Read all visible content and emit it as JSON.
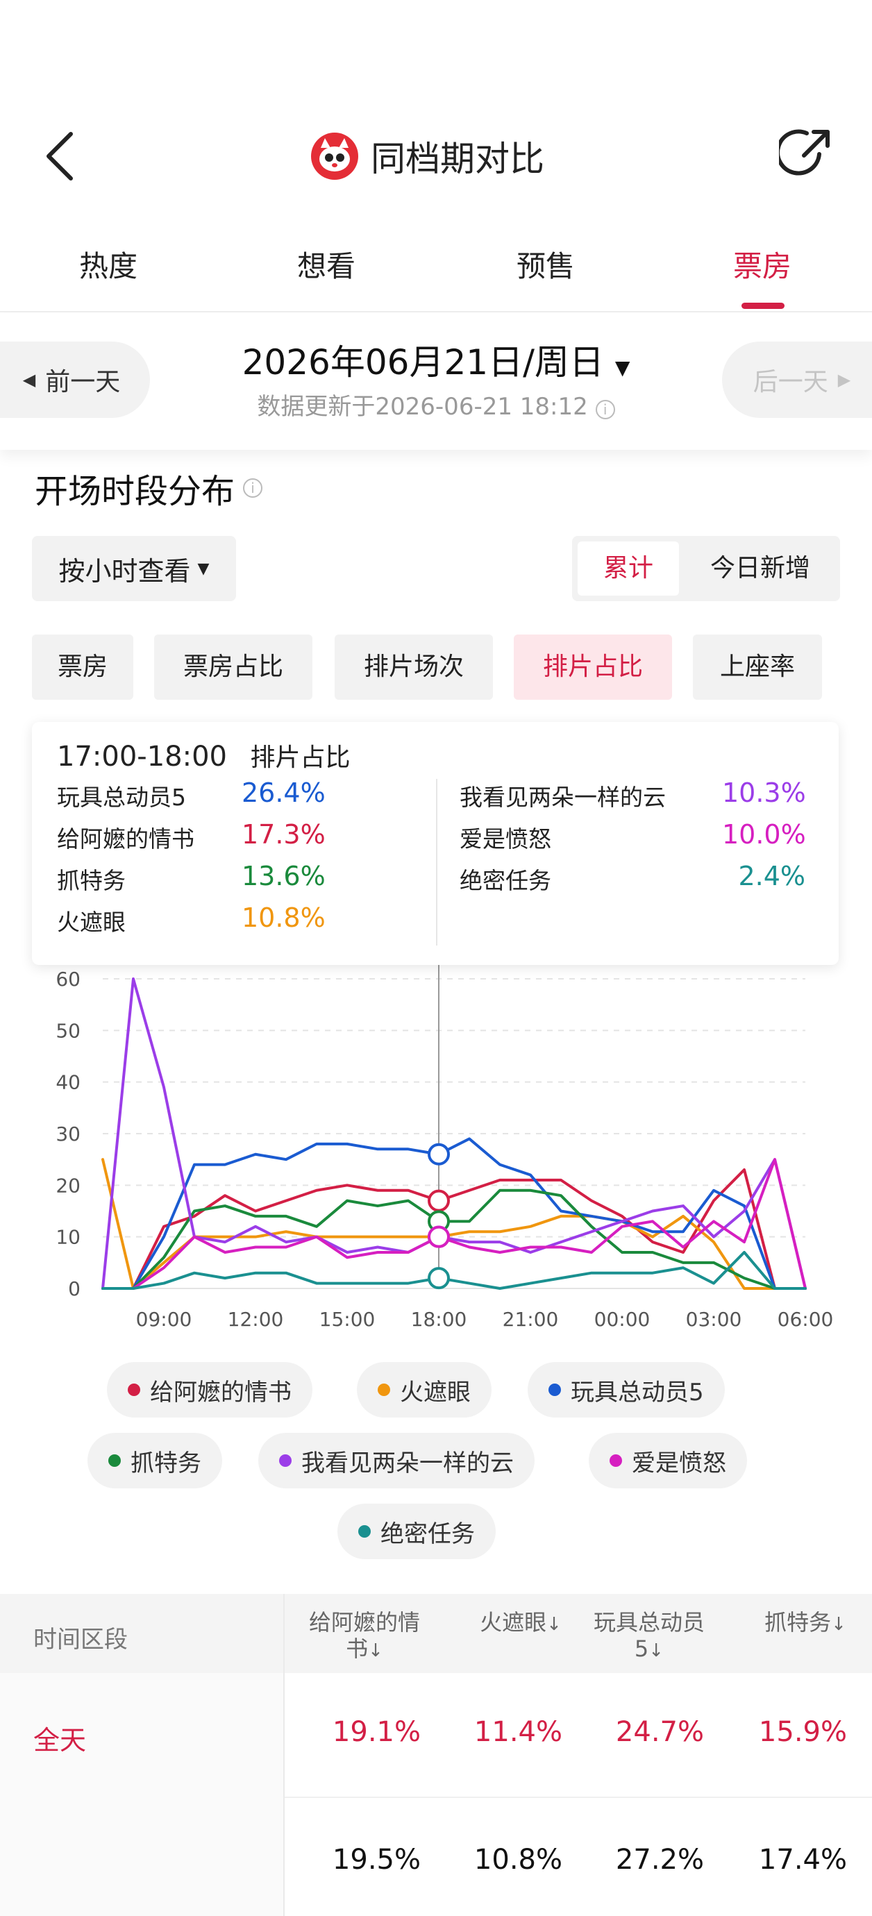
{
  "header": {
    "title": "同档期对比",
    "colors": {
      "accent": "#d31f45"
    }
  },
  "tabs": [
    {
      "label": "热度",
      "active": false
    },
    {
      "label": "想看",
      "active": false
    },
    {
      "label": "预售",
      "active": false
    },
    {
      "label": "票房",
      "active": true
    }
  ],
  "date": {
    "prev_label": "前一天",
    "next_label": "后一天",
    "main": "2026年06月21日/周日",
    "updated": "数据更新于2026-06-21  18:12"
  },
  "section": {
    "title": "开场时段分布",
    "hour_dropdown": "按小时查看",
    "toggle": {
      "cumulative": "累计",
      "today_new": "今日新增",
      "selected": "累计"
    },
    "metrics": [
      "票房",
      "票房占比",
      "排片场次",
      "排片占比",
      "上座率"
    ],
    "active_metric": "排片占比"
  },
  "tooltip": {
    "slot": "17:00-18:00",
    "metric": "排片占比",
    "left": [
      {
        "name": "玩具总动员5",
        "value": "26.4%",
        "color": "#1a5bd1"
      },
      {
        "name": "给阿嬷的情书",
        "value": "17.3%",
        "color": "#d31f45"
      },
      {
        "name": "抓特务",
        "value": "13.6%",
        "color": "#1a8a3c"
      },
      {
        "name": "火遮眼",
        "value": "10.8%",
        "color": "#f0960f"
      }
    ],
    "right": [
      {
        "name": "我看见两朵一样的云",
        "value": "10.3%",
        "color": "#9b3de8"
      },
      {
        "name": "爱是愤怒",
        "value": "10.0%",
        "color": "#d61fc0"
      },
      {
        "name": "绝密任务",
        "value": "2.4%",
        "color": "#1a9090"
      }
    ]
  },
  "chart_data": {
    "type": "line",
    "x": [
      7,
      8,
      9,
      10,
      11,
      12,
      13,
      14,
      15,
      16,
      17,
      18,
      19,
      20,
      21,
      22,
      23,
      24,
      25,
      26,
      27,
      28,
      29,
      30
    ],
    "x_ticks": [
      "09:00",
      "12:00",
      "15:00",
      "18:00",
      "21:00",
      "00:00",
      "03:00",
      "06:00"
    ],
    "ylim": [
      0,
      60
    ],
    "yticks": [
      0,
      10,
      20,
      30,
      40,
      50,
      60
    ],
    "highlight_x": 18,
    "series": [
      {
        "name": "给阿嬷的情书",
        "color": "#d31f45",
        "values": [
          0,
          0,
          12,
          14,
          18,
          15,
          17,
          19,
          20,
          19,
          19,
          17,
          19,
          21,
          21,
          21,
          17,
          14,
          9,
          7,
          17,
          23,
          0,
          0
        ]
      },
      {
        "name": "火遮眼",
        "color": "#f0960f",
        "values": [
          25,
          0,
          5,
          10,
          10,
          10,
          11,
          10,
          10,
          10,
          10,
          10,
          11,
          11,
          12,
          14,
          14,
          13,
          10,
          14,
          9,
          0,
          0,
          0
        ]
      },
      {
        "name": "玩具总动员5",
        "color": "#1a5bd1",
        "values": [
          0,
          0,
          10,
          24,
          24,
          26,
          25,
          28,
          28,
          27,
          27,
          26,
          29,
          24,
          22,
          15,
          14,
          13,
          11,
          11,
          19,
          16,
          0,
          0
        ]
      },
      {
        "name": "抓特务",
        "color": "#1a8a3c",
        "values": [
          0,
          0,
          6,
          15,
          16,
          14,
          14,
          12,
          17,
          16,
          17,
          13,
          13,
          19,
          19,
          18,
          12,
          7,
          7,
          5,
          5,
          2,
          0,
          0
        ]
      },
      {
        "name": "我看见两朵一样的云",
        "color": "#9b3de8",
        "values": [
          0,
          60,
          39,
          10,
          9,
          12,
          9,
          10,
          7,
          8,
          7,
          10,
          9,
          9,
          7,
          9,
          11,
          13,
          15,
          16,
          10,
          15,
          25,
          0
        ]
      },
      {
        "name": "爱是愤怒",
        "color": "#d61fc0",
        "values": [
          0,
          0,
          4,
          10,
          7,
          8,
          8,
          10,
          6,
          7,
          7,
          10,
          8,
          7,
          8,
          8,
          7,
          12,
          13,
          8,
          13,
          9,
          25,
          0
        ]
      },
      {
        "name": "绝密任务",
        "color": "#1a9090",
        "values": [
          0,
          0,
          1,
          3,
          2,
          3,
          3,
          1,
          1,
          1,
          1,
          2,
          1,
          0,
          1,
          2,
          3,
          3,
          3,
          4,
          1,
          7,
          0,
          0
        ]
      }
    ]
  },
  "table": {
    "col_time": "时间区段",
    "columns": [
      "给阿嬷的情书",
      "火遮眼",
      "玩具总动员5",
      "抓特务"
    ],
    "rows": [
      {
        "label": "全天",
        "values": [
          "19.1%",
          "11.4%",
          "24.7%",
          "15.9%"
        ]
      },
      {
        "label": "",
        "values": [
          "19.5%",
          "10.8%",
          "27.2%",
          "17.4%"
        ]
      }
    ]
  }
}
